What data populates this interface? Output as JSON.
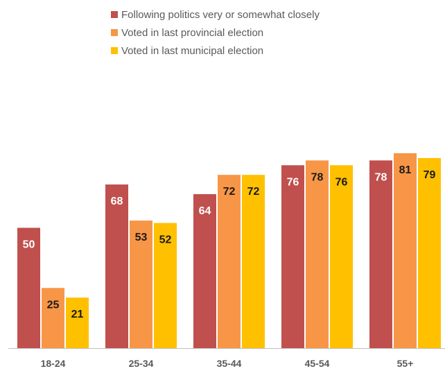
{
  "chart_data": {
    "type": "bar",
    "categories": [
      "18-24",
      "25-34",
      "35-44",
      "45-54",
      "55+"
    ],
    "series": [
      {
        "name": "Following politics very or somewhat closely",
        "values": [
          50,
          68,
          64,
          76,
          78
        ],
        "color": "#c0504d",
        "label_color": "#ffffff"
      },
      {
        "name": "Voted in last provincial election",
        "values": [
          25,
          53,
          72,
          78,
          81
        ],
        "color": "#f79646",
        "label_color": "#1a1a1a"
      },
      {
        "name": "Voted in last municipal election",
        "values": [
          21,
          52,
          72,
          76,
          79
        ],
        "color": "#ffc000",
        "label_color": "#1a1a1a"
      }
    ],
    "ylim": [
      0,
      90
    ],
    "grid": false,
    "legend_position": "top",
    "data_labels": true
  }
}
